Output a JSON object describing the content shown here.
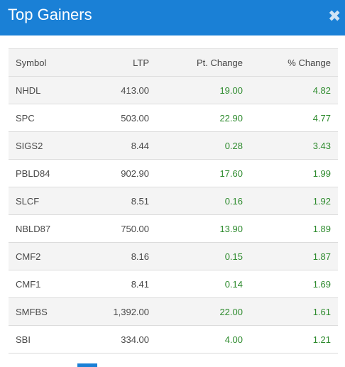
{
  "header": {
    "title": "Top Gainers",
    "close_glyph": "✖",
    "accent_color": "#1a80d6",
    "close_icon": "close-icon"
  },
  "table": {
    "columns": [
      "Symbol",
      "LTP",
      "Pt. Change",
      "% Change"
    ],
    "gain_color": "#2e8b2e",
    "rows": [
      {
        "symbol": "NHDL",
        "ltp": "413.00",
        "pt_change": "19.00",
        "pct_change": "4.82"
      },
      {
        "symbol": "SPC",
        "ltp": "503.00",
        "pt_change": "22.90",
        "pct_change": "4.77"
      },
      {
        "symbol": "SIGS2",
        "ltp": "8.44",
        "pt_change": "0.28",
        "pct_change": "3.43"
      },
      {
        "symbol": "PBLD84",
        "ltp": "902.90",
        "pt_change": "17.60",
        "pct_change": "1.99"
      },
      {
        "symbol": "SLCF",
        "ltp": "8.51",
        "pt_change": "0.16",
        "pct_change": "1.92"
      },
      {
        "symbol": "NBLD87",
        "ltp": "750.00",
        "pt_change": "13.90",
        "pct_change": "1.89"
      },
      {
        "symbol": "CMF2",
        "ltp": "8.16",
        "pt_change": "0.15",
        "pct_change": "1.87"
      },
      {
        "symbol": "CMF1",
        "ltp": "8.41",
        "pt_change": "0.14",
        "pct_change": "1.69"
      },
      {
        "symbol": "SMFBS",
        "ltp": "1,392.00",
        "pt_change": "22.00",
        "pct_change": "1.61"
      },
      {
        "symbol": "SBI",
        "ltp": "334.00",
        "pt_change": "4.00",
        "pct_change": "1.21"
      }
    ]
  }
}
